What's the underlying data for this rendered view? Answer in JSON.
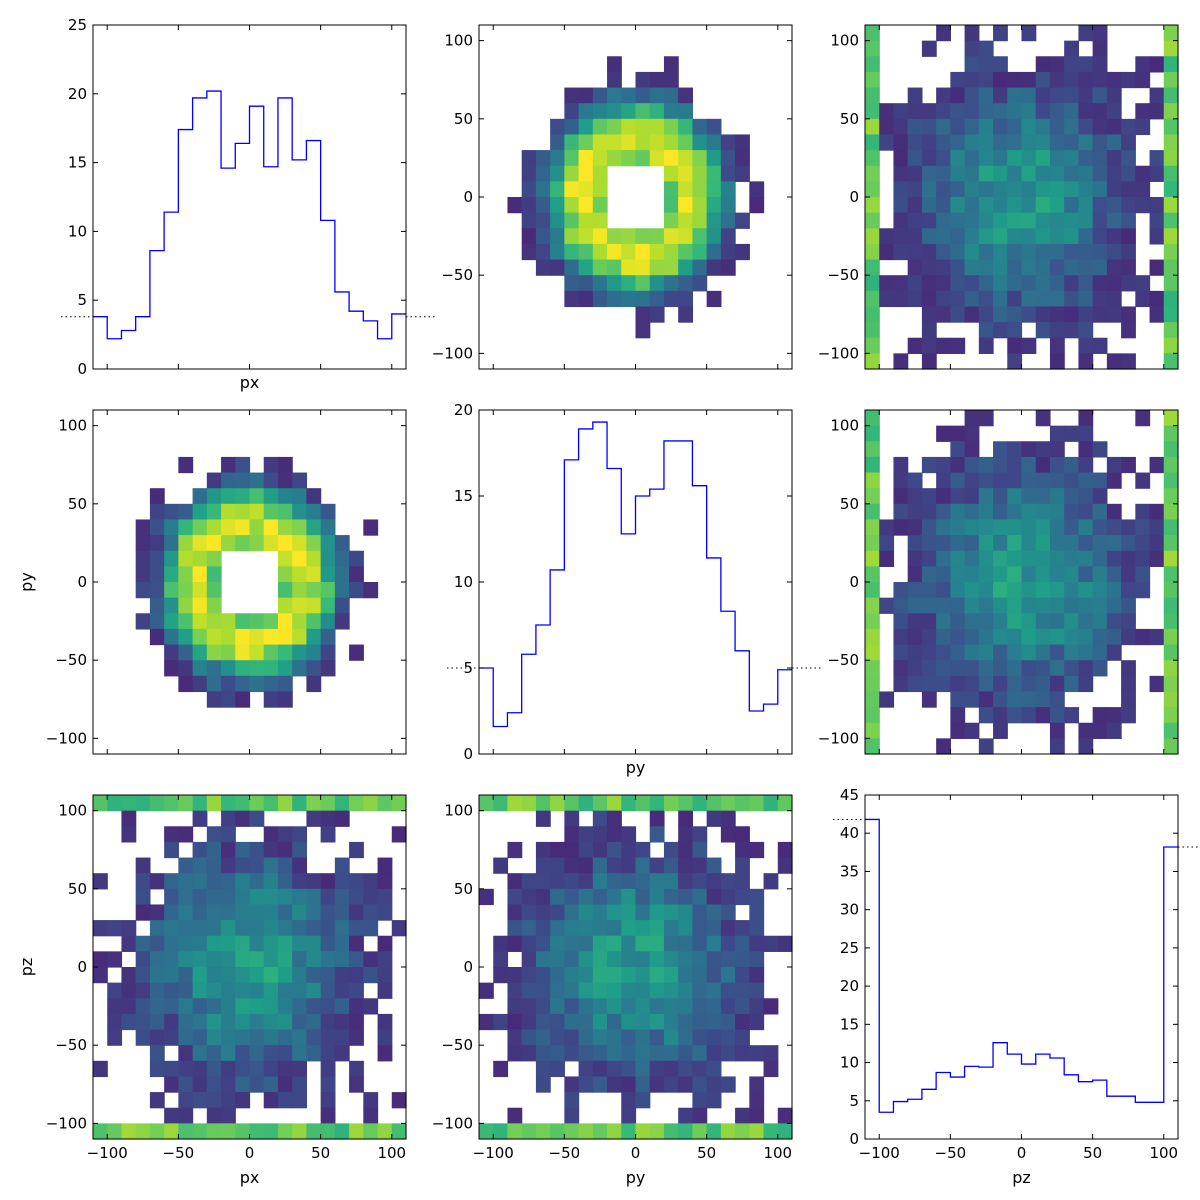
{
  "colors": {
    "line": "#0000ff",
    "frame": "#000000",
    "colormap": "viridis",
    "empty_bin": "#ffffff"
  },
  "chart_data": [
    {
      "type": "histogram",
      "panel": "row1-col1",
      "xlabel": "px",
      "ylabel": "",
      "xlim": [
        -110,
        110
      ],
      "ylim": [
        0,
        25
      ],
      "bin_edges_start": -110,
      "bin_width": 10,
      "yticks": [
        "0",
        "5",
        "10",
        "15",
        "20",
        "25"
      ],
      "xticks": [],
      "values": [
        3.8,
        2.2,
        2.8,
        3.8,
        8.6,
        11.4,
        17.4,
        19.7,
        20.2,
        14.6,
        16.4,
        19.1,
        14.7,
        19.7,
        15.2,
        16.6,
        10.8,
        5.6,
        4.2,
        3.5,
        2.2,
        4.0
      ],
      "dotted_ref": 3.8
    },
    {
      "type": "heatmap",
      "panel": "row1-col2",
      "pattern": "ring",
      "xlabel": "",
      "ylabel": "",
      "xlim": [
        -110,
        110
      ],
      "ylim": [
        -110,
        110
      ],
      "xticks": [],
      "yticks": [
        "100",
        "50",
        "0",
        "−50",
        "−100"
      ]
    },
    {
      "type": "heatmap",
      "panel": "row1-col3",
      "pattern": "edge-x",
      "xlabel": "",
      "ylabel": "",
      "xlim": [
        -110,
        110
      ],
      "ylim": [
        -110,
        110
      ],
      "xticks": [],
      "yticks": [
        "100",
        "50",
        "0",
        "−50",
        "−100"
      ]
    },
    {
      "type": "heatmap",
      "panel": "row2-col1",
      "pattern": "ring",
      "xlabel": "",
      "ylabel": "py",
      "xlim": [
        -110,
        110
      ],
      "ylim": [
        -110,
        110
      ],
      "xticks": [],
      "yticks": [
        "100",
        "50",
        "0",
        "−50",
        "−100"
      ]
    },
    {
      "type": "histogram",
      "panel": "row2-col2",
      "xlabel": "py",
      "ylabel": "",
      "xlim": [
        -110,
        110
      ],
      "ylim": [
        0,
        20
      ],
      "bin_edges_start": -110,
      "bin_width": 10,
      "yticks": [
        "0",
        "5",
        "10",
        "15",
        "20"
      ],
      "xticks": [],
      "values": [
        5.0,
        1.6,
        2.4,
        5.8,
        7.5,
        10.7,
        17.1,
        18.9,
        19.3,
        16.6,
        12.8,
        15.0,
        15.4,
        18.2,
        18.2,
        15.6,
        11.4,
        8.3,
        6.0,
        2.5,
        2.9,
        4.9
      ],
      "dotted_ref": 5.0
    },
    {
      "type": "heatmap",
      "panel": "row2-col3",
      "pattern": "edge-x",
      "xlabel": "",
      "ylabel": "",
      "xlim": [
        -110,
        110
      ],
      "ylim": [
        -110,
        110
      ],
      "xticks": [],
      "yticks": [
        "100",
        "50",
        "0",
        "−50",
        "−100"
      ]
    },
    {
      "type": "heatmap",
      "panel": "row3-col1",
      "pattern": "edge-y",
      "xlabel": "px",
      "ylabel": "pz",
      "xlim": [
        -110,
        110
      ],
      "ylim": [
        -110,
        110
      ],
      "xticks": [
        "−100",
        "−50",
        "0",
        "50",
        "100"
      ],
      "yticks": [
        "100",
        "50",
        "0",
        "−50",
        "−100"
      ]
    },
    {
      "type": "heatmap",
      "panel": "row3-col2",
      "pattern": "edge-y",
      "xlabel": "py",
      "ylabel": "",
      "xlim": [
        -110,
        110
      ],
      "ylim": [
        -110,
        110
      ],
      "xticks": [
        "−100",
        "−50",
        "0",
        "50",
        "100"
      ],
      "yticks": [
        "100",
        "50",
        "0",
        "−50",
        "−100"
      ]
    },
    {
      "type": "histogram",
      "panel": "row3-col3",
      "xlabel": "pz",
      "ylabel": "",
      "xlim": [
        -110,
        110
      ],
      "ylim": [
        0,
        45
      ],
      "bin_edges_start": -110,
      "bin_width": 10,
      "yticks": [
        "0",
        "5",
        "10",
        "15",
        "20",
        "25",
        "30",
        "35",
        "40",
        "45"
      ],
      "xticks": [
        "−100",
        "−50",
        "0",
        "50",
        "100"
      ],
      "values": [
        41.8,
        3.5,
        4.9,
        5.2,
        6.5,
        8.7,
        8.1,
        9.5,
        9.4,
        12.6,
        11.1,
        9.8,
        11.1,
        10.6,
        8.4,
        7.5,
        7.7,
        5.6,
        5.6,
        4.8,
        4.8,
        38.2
      ],
      "dotted_ref": [
        41.8,
        38.2
      ]
    }
  ]
}
